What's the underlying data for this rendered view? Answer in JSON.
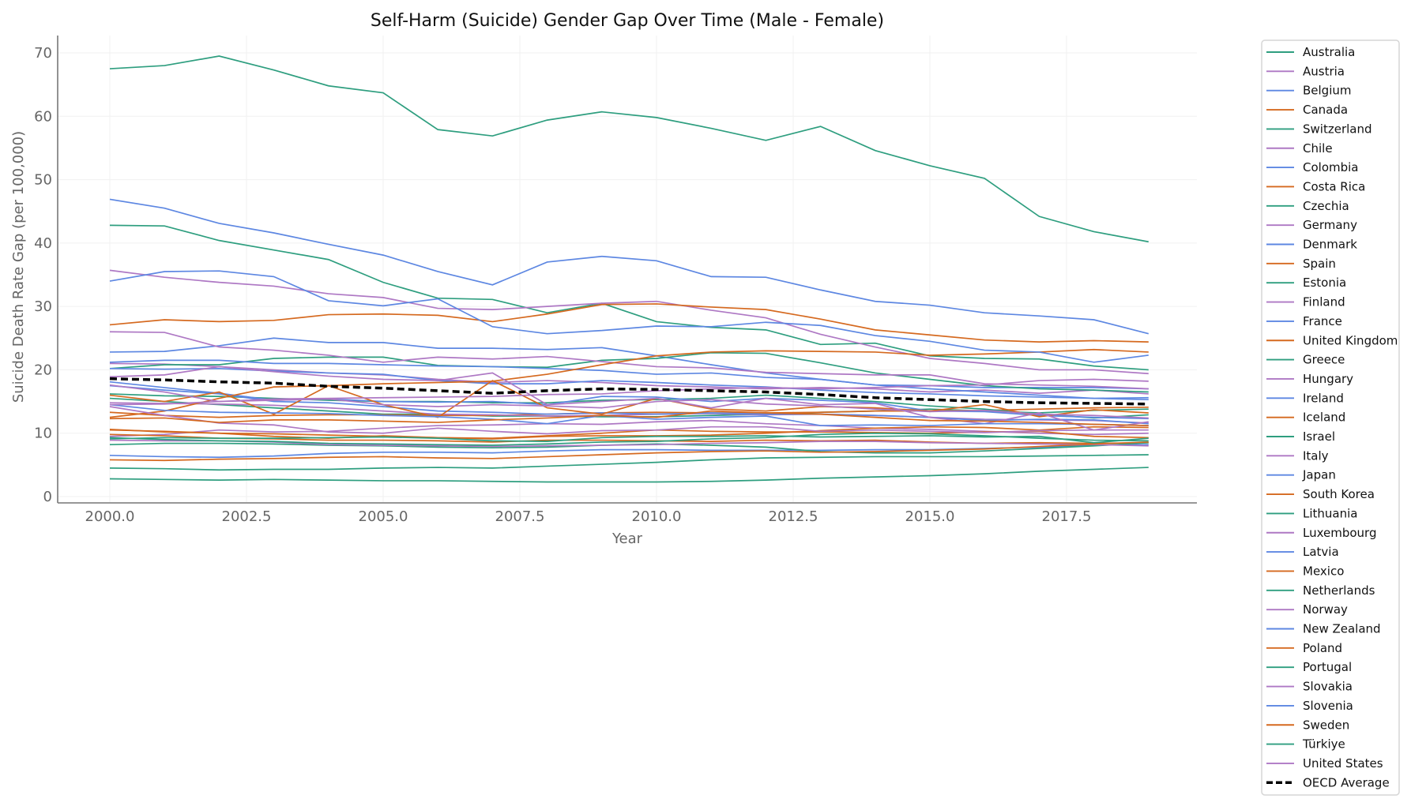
{
  "chart_data": {
    "type": "line",
    "title": "Self-Harm (Suicide) Gender Gap Over Time (Male - Female)",
    "xlabel": "Year",
    "ylabel": "Suicide Death Rate Gap (per 100,000)",
    "xlim": [
      1998.9,
      2020.1
    ],
    "ylim": [
      -1,
      73
    ],
    "xticks": [
      "2000.0",
      "2002.5",
      "2005.0",
      "2007.5",
      "2010.0",
      "2012.5",
      "2015.0",
      "2017.5"
    ],
    "xtick_values": [
      2000,
      2002.5,
      2005,
      2007.5,
      2010,
      2012.5,
      2015,
      2017.5
    ],
    "yticks": [
      0,
      10,
      20,
      30,
      40,
      50,
      60,
      70
    ],
    "grid": true,
    "legend_position": "outside-right",
    "colors": {
      "teal": "#2e9e7f",
      "purple": "#ae78c4",
      "blue": "#5d87e2",
      "orange": "#d5691f",
      "average": "#000000"
    },
    "x": [
      2000,
      2001,
      2002,
      2003,
      2004,
      2005,
      2006,
      2007,
      2008,
      2009,
      2010,
      2011,
      2012,
      2013,
      2014,
      2015,
      2016,
      2017,
      2018,
      2019
    ],
    "series": [
      {
        "name": "Australia",
        "values": [
          15.5,
          15,
          14.5,
          14,
          13.5,
          13,
          13,
          12.7,
          12.7,
          12.6,
          12.6,
          12.8,
          13,
          13.3,
          13.5,
          13.8,
          13.5,
          13.2,
          13.6,
          13.8
        ]
      },
      {
        "name": "Austria",
        "values": [
          21,
          20.9,
          20.5,
          20,
          19.5,
          19.2,
          18.5,
          18,
          18.3,
          18,
          17.5,
          17.3,
          17,
          17.2,
          17,
          16.5,
          16.8,
          16.3,
          16.8,
          16.2
        ]
      },
      {
        "name": "Belgium",
        "values": [
          22.8,
          22.9,
          23.8,
          25,
          24.3,
          24.3,
          23.4,
          23.4,
          23.2,
          23.5,
          22.2,
          20.8,
          19.5,
          18.5,
          17.6,
          17.5,
          17.2,
          17.2,
          17.2,
          17
        ]
      },
      {
        "name": "Canada",
        "values": [
          13.3,
          12.8,
          12.5,
          12.8,
          12.9,
          12.9,
          12.8,
          12.8,
          13,
          13.2,
          13.3,
          13.2,
          13.2,
          13.3,
          13.5,
          13.5,
          13.6,
          13.8,
          14,
          14.1
        ]
      },
      {
        "name": "Switzerland",
        "values": [
          20.2,
          20.8,
          20.8,
          21.8,
          22,
          22,
          20.7,
          20.5,
          20.4,
          21.5,
          21.8,
          22.7,
          22.6,
          21.1,
          19.5,
          18.5,
          17.5,
          17,
          16.8,
          16.5
        ]
      },
      {
        "name": "Chile",
        "values": [
          9.5,
          9.8,
          10.5,
          10.2,
          10.3,
          10.8,
          11.2,
          11.3,
          11.5,
          11.4,
          11.8,
          12,
          11.5,
          11.2,
          10.8,
          10.6,
          10.3,
          10,
          9.8,
          10
        ]
      },
      {
        "name": "Colombia",
        "values": [
          6.5,
          6.3,
          6.2,
          6.4,
          6.8,
          7,
          7,
          6.9,
          7.2,
          7.4,
          7.4,
          7.3,
          7.3,
          7.3,
          7.4,
          7.4,
          7.6,
          7.8,
          8.1,
          8.2
        ]
      },
      {
        "name": "Costa Rica",
        "values": [
          10.5,
          10.3,
          10,
          9.5,
          9.2,
          9.6,
          9.3,
          9.2,
          9.6,
          10,
          10.5,
          10.3,
          10.2,
          10.2,
          10.1,
          10,
          10.2,
          10.3,
          9.5,
          9.3
        ]
      },
      {
        "name": "Czechia",
        "values": [
          16.2,
          15.9,
          15.8,
          15.5,
          15.2,
          15,
          15,
          14.8,
          14.8,
          15.2,
          15.3,
          15.5,
          16,
          15.5,
          15,
          14.3,
          13.8,
          13,
          12.4,
          12.9
        ]
      },
      {
        "name": "Germany",
        "values": [
          14.8,
          14.7,
          14.6,
          14.4,
          14,
          13.5,
          13,
          12.9,
          12.7,
          12.8,
          13,
          13.1,
          12.9,
          13,
          12.8,
          12.5,
          12.2,
          12.1,
          12,
          11.6
        ]
      },
      {
        "name": "Denmark",
        "values": [
          17.5,
          16.8,
          16.2,
          15,
          14.8,
          14.2,
          13.5,
          13.3,
          13,
          13.2,
          13,
          13.2,
          13,
          13,
          12.8,
          12.5,
          12,
          12.2,
          12.1,
          11.5
        ]
      },
      {
        "name": "Spain",
        "values": [
          9.8,
          9.6,
          9.2,
          9.1,
          8.9,
          8.9,
          8.8,
          8.6,
          8.9,
          8.9,
          8.8,
          8.7,
          8.9,
          8.8,
          8.9,
          8.6,
          8.4,
          8.5,
          8.4,
          8.5
        ]
      },
      {
        "name": "Estonia",
        "values": [
          42.8,
          42.7,
          40.4,
          38.9,
          37.4,
          33.8,
          31.3,
          31.1,
          29,
          30.5,
          27.6,
          26.7,
          26.3,
          24,
          24.2,
          22.2,
          21.8,
          21.7,
          20.6,
          20
        ]
      },
      {
        "name": "Finland",
        "values": [
          26,
          25.9,
          23.6,
          23.1,
          22.3,
          21.2,
          22,
          21.7,
          22.1,
          21.3,
          20.5,
          20.3,
          19.6,
          19.4,
          19.2,
          19.2,
          17.8,
          17.6,
          17.4,
          17
        ]
      },
      {
        "name": "France",
        "values": [
          20.2,
          20.1,
          20.2,
          19.8,
          19.5,
          19.3,
          18.3,
          17.8,
          17.8,
          18.3,
          18,
          17.6,
          17.3,
          16.8,
          16.4,
          16.2,
          15.9,
          15.7,
          15.5,
          15.6
        ]
      },
      {
        "name": "United Kingdom",
        "values": [
          10.6,
          10.2,
          10,
          9.9,
          9.7,
          9.5,
          9.3,
          9.1,
          9.5,
          9.6,
          9.6,
          9.7,
          10,
          10.4,
          10.8,
          11,
          10.9,
          10.5,
          11,
          10.9
        ]
      },
      {
        "name": "Greece",
        "values": [
          4.5,
          4.4,
          4.2,
          4.3,
          4.3,
          4.5,
          4.6,
          4.5,
          4.8,
          5.1,
          5.4,
          5.8,
          6.1,
          6.2,
          6.3,
          6.3,
          6.3,
          6.4,
          6.5,
          6.6
        ]
      },
      {
        "name": "Hungary",
        "values": [
          35.7,
          34.6,
          33.8,
          33.2,
          32,
          31.4,
          29.7,
          29.5,
          30,
          30.5,
          30.8,
          29.4,
          28.2,
          25.6,
          23.6,
          21.8,
          21,
          20,
          20,
          19.4
        ]
      },
      {
        "name": "Ireland",
        "values": [
          18.1,
          17.2,
          16.3,
          15.2,
          15.4,
          15,
          14.9,
          15,
          14.5,
          15.8,
          15.7,
          15,
          15.5,
          15.2,
          14.8,
          13.5,
          13.4,
          12.8,
          12.5,
          12.3
        ]
      },
      {
        "name": "Iceland",
        "values": [
          16,
          15,
          16.5,
          13,
          17.5,
          14.5,
          12.5,
          18.3,
          14,
          13,
          15.5,
          13.8,
          13.5,
          14.2,
          14,
          13.5,
          14.5,
          12.6,
          13.7,
          13.2
        ]
      },
      {
        "name": "Israel",
        "values": [
          8.2,
          8.4,
          8.4,
          8.3,
          8.1,
          8,
          7.8,
          7.7,
          7.8,
          8.1,
          8.3,
          8.1,
          7.8,
          7.1,
          6.9,
          6.9,
          7.2,
          7.6,
          8,
          8.5
        ]
      },
      {
        "name": "Italy",
        "values": [
          8.9,
          8.8,
          8.8,
          8.6,
          8.2,
          8.1,
          8,
          7.9,
          8,
          8.1,
          8.2,
          8.4,
          8.5,
          8.7,
          8.7,
          8.5,
          8.4,
          8.3,
          8.2,
          8
        ]
      },
      {
        "name": "Japan",
        "values": [
          21.2,
          21.5,
          21.5,
          21,
          21,
          20.8,
          20.6,
          20.5,
          20.2,
          19.9,
          19.3,
          19.5,
          18.8,
          18.5,
          17.6,
          17,
          16.5,
          16,
          15.5,
          15.3
        ]
      },
      {
        "name": "South Korea",
        "values": [
          12.5,
          13.5,
          15.5,
          17.3,
          17.5,
          17.8,
          18,
          18.2,
          19.3,
          20.8,
          22.2,
          22.8,
          23,
          22.9,
          22.8,
          22.3,
          22.5,
          22.8,
          23.2,
          22.8
        ]
      },
      {
        "name": "Lithuania",
        "values": [
          67.5,
          68,
          69.5,
          67.3,
          64.8,
          63.7,
          57.9,
          56.9,
          59.4,
          60.7,
          59.8,
          58.1,
          56.2,
          58.4,
          54.6,
          52.2,
          50.2,
          44.2,
          41.8,
          40.2
        ]
      },
      {
        "name": "Luxembourg",
        "values": [
          18.9,
          19.2,
          20.5,
          19.7,
          19,
          18.5,
          18.3,
          19.5,
          14.5,
          15,
          15.5,
          14,
          15.5,
          14.5,
          14.7,
          12.5,
          11.5,
          13.2,
          10.5,
          11.8
        ]
      },
      {
        "name": "Latvia",
        "values": [
          46.9,
          45.5,
          43.1,
          41.6,
          39.8,
          38.1,
          35.5,
          33.4,
          37,
          37.9,
          37.2,
          34.7,
          34.6,
          32.6,
          30.8,
          30.2,
          29,
          28.5,
          27.9,
          25.7
        ]
      },
      {
        "name": "Mexico",
        "values": [
          5.8,
          5.7,
          5.9,
          6,
          6.2,
          6.3,
          6.1,
          6,
          6.3,
          6.6,
          6.9,
          7.1,
          7.2,
          7,
          7.1,
          7.3,
          7.5,
          7.9,
          8.3,
          8.6
        ]
      },
      {
        "name": "Netherlands",
        "values": [
          9.3,
          9,
          8.8,
          8.7,
          8.4,
          8.3,
          8.2,
          8.1,
          8.3,
          8.6,
          8.7,
          9.1,
          9.3,
          9.8,
          10,
          9.9,
          9.6,
          9.2,
          8.9,
          8.8
        ]
      },
      {
        "name": "Norway",
        "values": [
          14.2,
          12.8,
          11.6,
          11.3,
          10.2,
          10,
          10.8,
          10.3,
          9.9,
          10.4,
          10.5,
          11,
          11,
          10.3,
          10.5,
          10.3,
          10.1,
          10.4,
          10.5,
          10.5
        ]
      },
      {
        "name": "New Zealand",
        "values": [
          14.5,
          13.6,
          13.3,
          13.2,
          13.1,
          12.8,
          12.6,
          12.2,
          11.5,
          12.8,
          12.2,
          12.5,
          12.7,
          11.2,
          11.3,
          11.2,
          11.5,
          11.5,
          11.4,
          11.2
        ]
      },
      {
        "name": "Poland",
        "values": [
          27.1,
          27.9,
          27.6,
          27.8,
          28.7,
          28.8,
          28.6,
          27.6,
          28.8,
          30.3,
          30.4,
          29.9,
          29.5,
          28,
          26.3,
          25.5,
          24.7,
          24.4,
          24.6,
          24.4
        ]
      },
      {
        "name": "Portugal",
        "values": [
          9.1,
          9.3,
          9.2,
          9.2,
          9.3,
          9.4,
          9.2,
          8.8,
          8.7,
          9.3,
          9.5,
          9.5,
          9.6,
          9.4,
          9.5,
          9.6,
          9.4,
          9.5,
          8.5,
          9.2
        ]
      },
      {
        "name": "Slovakia",
        "values": [
          17.6,
          16.5,
          15,
          15.2,
          15.4,
          14.5,
          14.2,
          14.5,
          14.3,
          14,
          15,
          15.3,
          14.6,
          14.3,
          13.8,
          13.4,
          13.6,
          13,
          12.8,
          12.4
        ]
      },
      {
        "name": "Slovenia",
        "values": [
          34,
          35.5,
          35.6,
          34.7,
          30.9,
          30.1,
          31.2,
          26.8,
          25.7,
          26.2,
          26.9,
          26.8,
          27.5,
          27,
          25.4,
          24.5,
          23.1,
          22.8,
          21.2,
          22.3
        ]
      },
      {
        "name": "Sweden",
        "values": [
          12.3,
          12.4,
          11.7,
          12.1,
          12.1,
          11.9,
          11.7,
          12.1,
          12.4,
          12.8,
          12.5,
          13.5,
          13.2,
          13,
          12.5,
          12,
          11.9,
          11.7,
          11.4,
          11.2
        ]
      },
      {
        "name": "Türkiye",
        "values": [
          2.8,
          2.7,
          2.6,
          2.7,
          2.6,
          2.5,
          2.5,
          2.4,
          2.3,
          2.3,
          2.3,
          2.4,
          2.6,
          2.9,
          3.1,
          3.3,
          3.6,
          4,
          4.3,
          4.6
        ]
      },
      {
        "name": "United States",
        "values": [
          14.5,
          14.6,
          15,
          15.4,
          15.5,
          15.6,
          15.7,
          15.8,
          16.1,
          16.2,
          16.7,
          17,
          17.2,
          17,
          17.2,
          17.5,
          17.6,
          18.3,
          18.5,
          18.2
        ]
      }
    ],
    "average": {
      "name": "OECD Average",
      "style": "dashed",
      "values": [
        18.6,
        18.4,
        18.1,
        17.9,
        17.4,
        17.1,
        16.7,
        16.3,
        16.7,
        17,
        16.9,
        16.7,
        16.5,
        16.1,
        15.6,
        15.3,
        15,
        14.8,
        14.7,
        14.6
      ]
    }
  }
}
